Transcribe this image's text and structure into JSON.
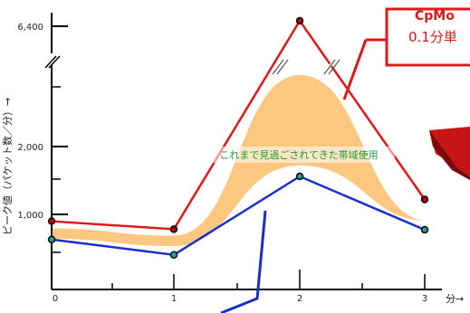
{
  "chart_data": {
    "type": "line",
    "x": [
      0,
      1,
      2,
      3
    ],
    "x_tick_labels": [
      "0",
      "1",
      "2",
      "3"
    ],
    "xlabel": "分",
    "ylabel": "ピーク値（パケット数／分）→",
    "y_tick_labels": [
      "1,000",
      "2,000",
      "6,400"
    ],
    "y_axis_break": true,
    "series": [
      {
        "color": "#e01818",
        "marker_color": "#b00000",
        "values": [
          880,
          740,
          6400,
          1220
        ]
      },
      {
        "color": "#1a2ecc",
        "marker_color": "#1aa0a0",
        "values": [
          560,
          290,
          1560,
          730
        ]
      }
    ],
    "band": {
      "label": "これまで見過ごされてきた帯域使用",
      "color": "#fbc781",
      "lower": [
        550,
        420,
        1700,
        860
      ],
      "upper": [
        780,
        650,
        3900,
        900
      ]
    },
    "callout": {
      "title": "CpMo",
      "subtitle": "0.1分単"
    },
    "colors": {
      "axis": "#000000",
      "callout_border": "#e01818",
      "pointer": "#1a2ecc"
    }
  }
}
